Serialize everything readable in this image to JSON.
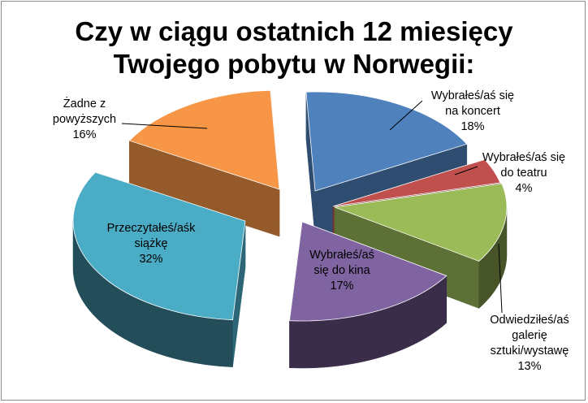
{
  "chart_data": {
    "type": "pie",
    "title_lines": [
      "Czy w ciągu ostatnich 12 miesięcy",
      "Twojego pobytu w Norwegii:"
    ],
    "slices": [
      {
        "label_lines": [
          "Wybrałeś/aś się",
          "na koncert"
        ],
        "percent_label": "18%",
        "value": 18,
        "color": "#4f81bd"
      },
      {
        "label_lines": [
          "Wybrałeś/aś się",
          "do teatru"
        ],
        "percent_label": "4%",
        "value": 4,
        "color": "#c0504d"
      },
      {
        "label_lines": [
          "Odwiedziłeś/aś",
          "galerię",
          "sztuki/wystawę"
        ],
        "percent_label": "13%",
        "value": 13,
        "color": "#9bbb59"
      },
      {
        "label_lines": [
          "Wybrałeś/aś",
          "się do kina"
        ],
        "percent_label": "17%",
        "value": 17,
        "color": "#8064a2"
      },
      {
        "label_lines": [
          "Przeczytałeś/aśk",
          "siążkę"
        ],
        "percent_label": "32%",
        "value": 32,
        "color": "#4bacc6"
      },
      {
        "label_lines": [
          "Żadne z",
          "powyższych"
        ],
        "percent_label": "16%",
        "value": 16,
        "color": "#f79646"
      }
    ],
    "legend": "none",
    "style": "3d-exploded"
  }
}
